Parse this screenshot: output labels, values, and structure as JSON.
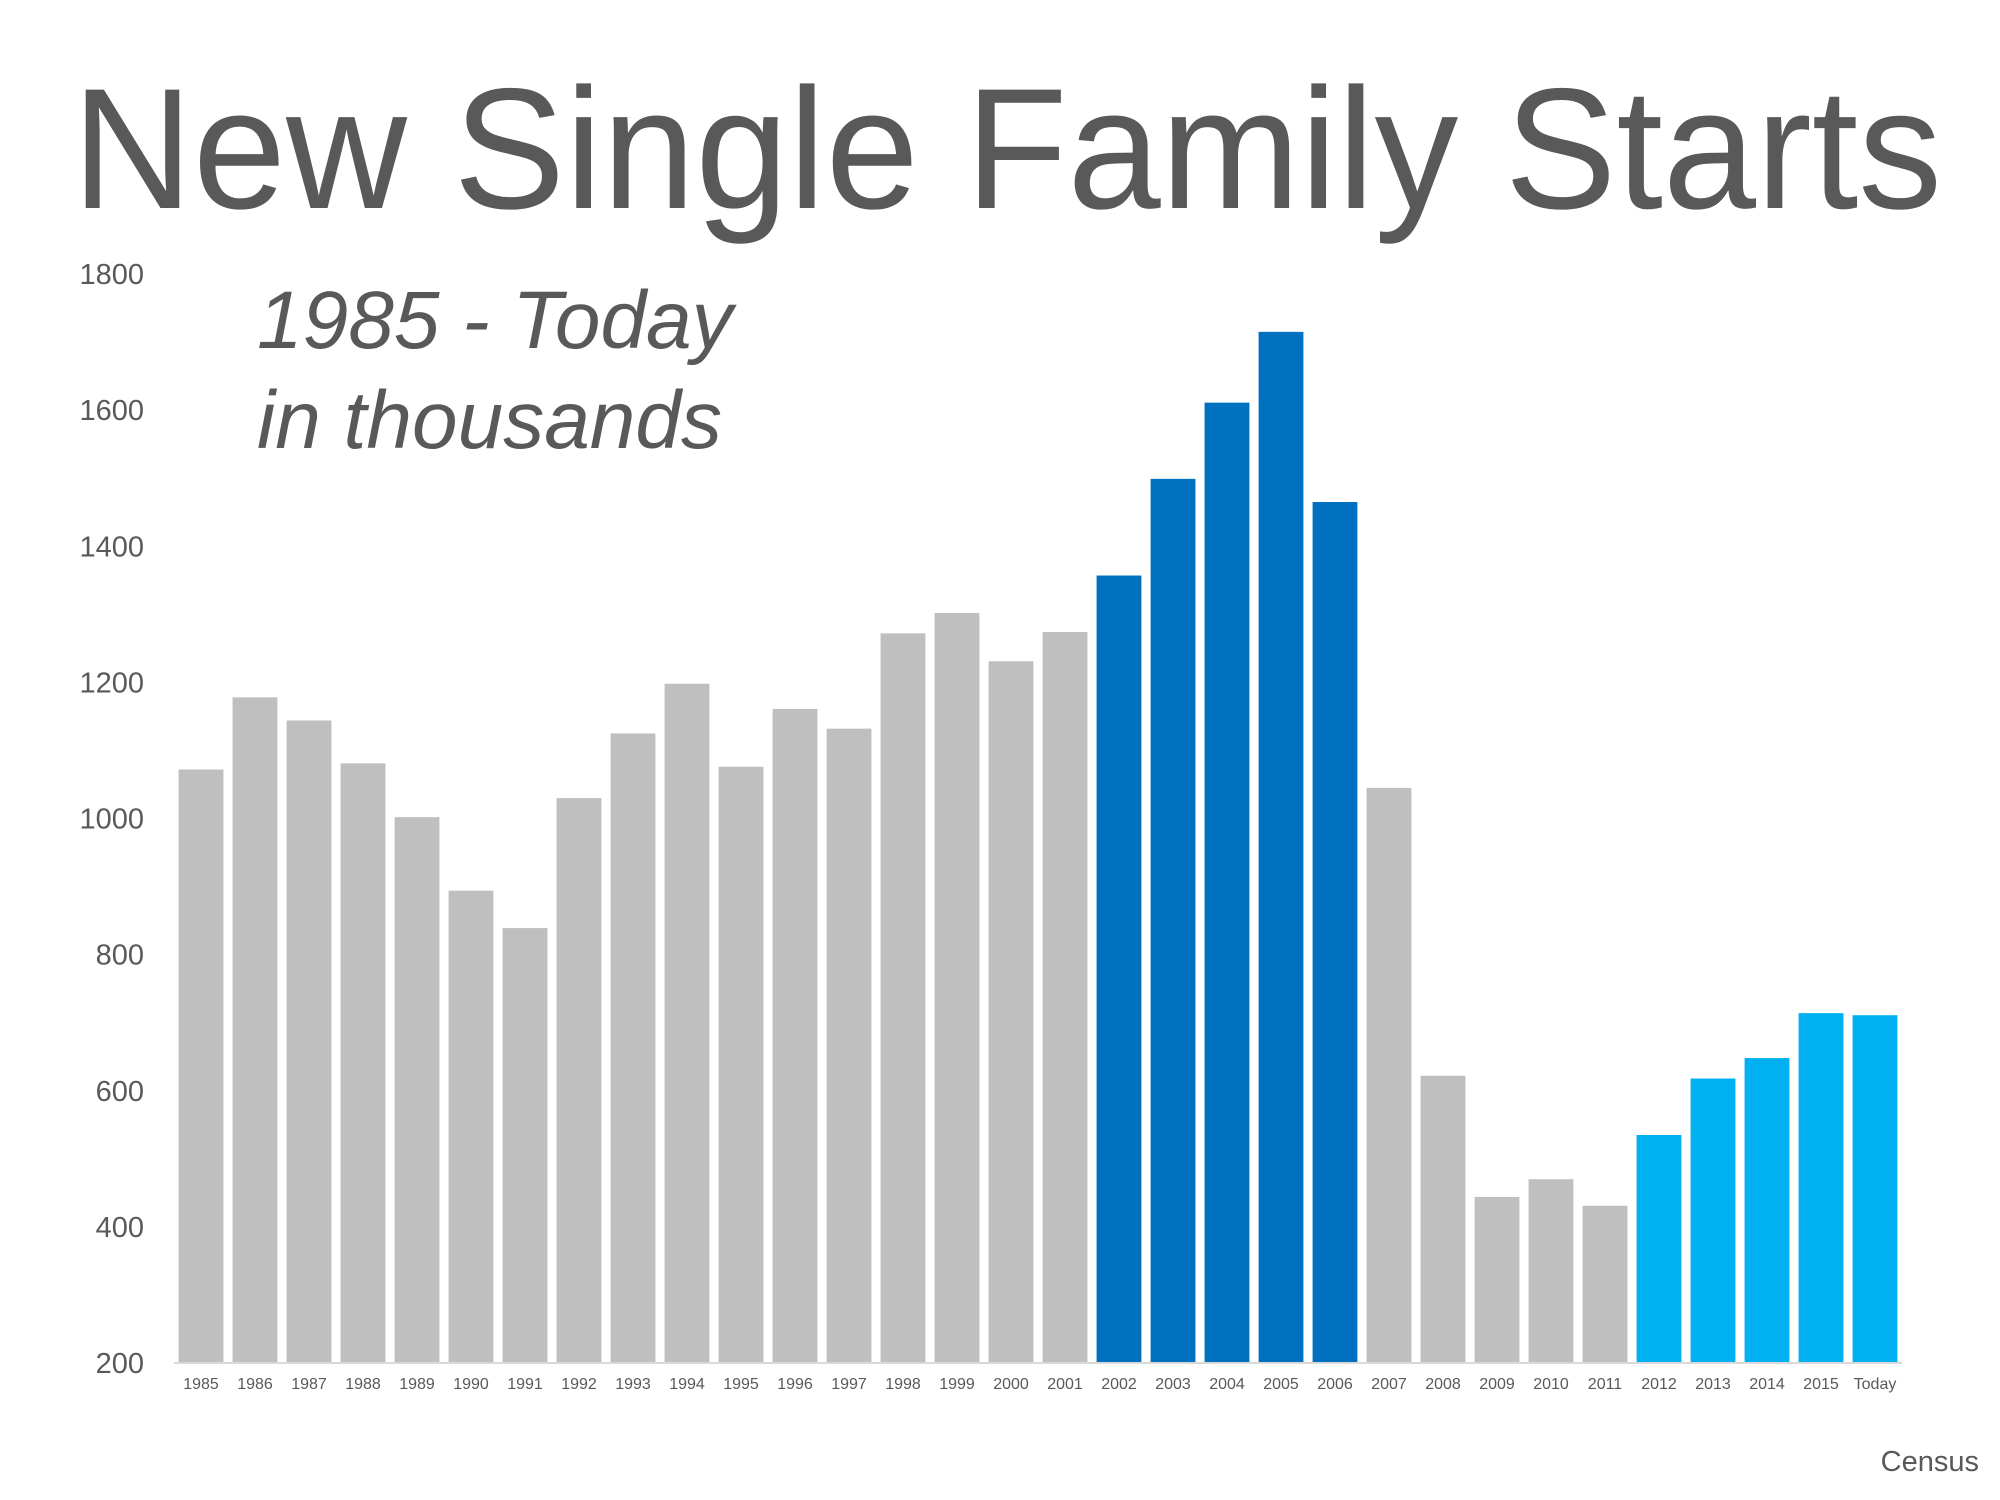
{
  "chart_data": {
    "type": "bar",
    "title": "New Single Family Starts",
    "subtitle": [
      "1985 - Today",
      "in thousands"
    ],
    "source": "Census",
    "categories": [
      "1985",
      "1986",
      "1987",
      "1988",
      "1989",
      "1990",
      "1991",
      "1992",
      "1993",
      "1994",
      "1995",
      "1996",
      "1997",
      "1998",
      "1999",
      "2000",
      "2001",
      "2002",
      "2003",
      "2004",
      "2005",
      "2006",
      "2007",
      "2008",
      "2009",
      "2010",
      "2011",
      "2012",
      "2013",
      "2014",
      "2015",
      "Today"
    ],
    "values": [
      1072,
      1178,
      1144,
      1081,
      1002,
      894,
      839,
      1030,
      1125,
      1198,
      1076,
      1161,
      1132,
      1272,
      1302,
      1231,
      1274,
      1357,
      1499,
      1611,
      1715,
      1465,
      1045,
      622,
      444,
      470,
      431,
      535,
      618,
      648,
      714,
      711
    ],
    "colors": [
      "#bfbfbf",
      "#bfbfbf",
      "#bfbfbf",
      "#bfbfbf",
      "#bfbfbf",
      "#bfbfbf",
      "#bfbfbf",
      "#bfbfbf",
      "#bfbfbf",
      "#bfbfbf",
      "#bfbfbf",
      "#bfbfbf",
      "#bfbfbf",
      "#bfbfbf",
      "#bfbfbf",
      "#bfbfbf",
      "#bfbfbf",
      "#0070c0",
      "#0070c0",
      "#0070c0",
      "#0070c0",
      "#0070c0",
      "#bfbfbf",
      "#bfbfbf",
      "#bfbfbf",
      "#bfbfbf",
      "#bfbfbf",
      "#00b0f0",
      "#00b0f0",
      "#00b0f0",
      "#00b0f0",
      "#00b0f0"
    ],
    "ylim": [
      200,
      1800
    ],
    "yticks": [
      200,
      400,
      600,
      800,
      1000,
      1200,
      1400,
      1600,
      1800
    ],
    "grid": false
  }
}
